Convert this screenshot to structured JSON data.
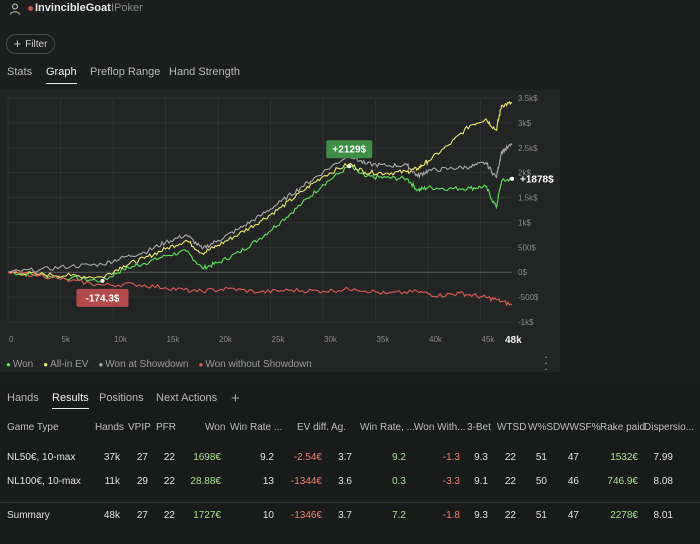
{
  "header": {
    "player_name": "InvincibleGoat",
    "site_name": "IPoker",
    "status_color": "#c0504a"
  },
  "filter": {
    "label": "Filter"
  },
  "tabs": [
    {
      "label": "Stats"
    },
    {
      "label": "Graph"
    },
    {
      "label": "Preflop Range"
    },
    {
      "label": "Hand Strength"
    }
  ],
  "chart_data": {
    "type": "line",
    "x_unit": "hands",
    "x_range": [
      0,
      48000
    ],
    "ylim": [
      -1000,
      3500
    ],
    "y_ticks": [
      3500,
      3000,
      2500,
      2000,
      1500,
      1000,
      500,
      0,
      -500,
      -1000
    ],
    "y_tick_labels": [
      "3.5k$",
      "3k$",
      "2.5k$",
      "2k$",
      "1.5k$",
      "1k$",
      "500$",
      "0$",
      "-500$",
      "-1k$"
    ],
    "x_ticks": [
      0,
      5000,
      10000,
      15000,
      20000,
      25000,
      30000,
      35000,
      40000,
      45000
    ],
    "x_tick_labels": [
      "0",
      "5k",
      "10k",
      "15k",
      "20k",
      "25k",
      "30k",
      "35k",
      "40k",
      "45k"
    ],
    "x_end_label": "48k",
    "grid": true,
    "annotations": [
      {
        "text": "+2129$",
        "x": 32500,
        "y": 2129,
        "color": "#3e8f45",
        "placement": "above"
      },
      {
        "text": "-174.3$",
        "x": 9000,
        "y": -174.3,
        "color": "#b34a4a",
        "placement": "below"
      },
      {
        "text": "+1878$",
        "x": 48000,
        "y": 1878,
        "color": "none",
        "placement": "end"
      }
    ],
    "series": [
      {
        "name": "Won",
        "color": "#5ee05a",
        "x": [
          0,
          3000,
          6000,
          9000,
          11000,
          13000,
          15000,
          17000,
          18500,
          20000,
          22000,
          24000,
          26000,
          28000,
          30000,
          32500,
          34000,
          36000,
          38000,
          39000,
          40000,
          42000,
          44000,
          45500,
          46500,
          47000,
          48000
        ],
        "y": [
          0,
          -60,
          -120,
          -174,
          60,
          180,
          330,
          420,
          80,
          190,
          400,
          680,
          1020,
          1380,
          1760,
          2129,
          1920,
          1900,
          1880,
          1650,
          1700,
          1680,
          1690,
          1720,
          1300,
          1830,
          1878
        ]
      },
      {
        "name": "All-in EV",
        "color": "#e8e86a",
        "x": [
          0,
          3000,
          6000,
          9000,
          11000,
          13000,
          15000,
          17000,
          18500,
          20000,
          22000,
          24000,
          26000,
          28000,
          30000,
          32500,
          34000,
          36000,
          38000,
          39000,
          40000,
          42000,
          44000,
          45500,
          46500,
          47000,
          48000
        ],
        "y": [
          0,
          -40,
          -70,
          -100,
          130,
          280,
          470,
          640,
          380,
          540,
          770,
          1020,
          1300,
          1620,
          1930,
          2180,
          2010,
          1990,
          2020,
          2080,
          2230,
          2560,
          2950,
          3080,
          2850,
          3350,
          3400
        ]
      },
      {
        "name": "Won at Showdown",
        "color": "#a8a8a8",
        "x": [
          0,
          3000,
          6000,
          9000,
          11000,
          13000,
          15000,
          17000,
          18500,
          20000,
          22000,
          24000,
          26000,
          28000,
          30000,
          32500,
          34000,
          36000,
          38000,
          39000,
          40000,
          42000,
          44000,
          45500,
          46500,
          47000,
          48000
        ],
        "y": [
          0,
          50,
          120,
          160,
          300,
          400,
          600,
          750,
          470,
          640,
          870,
          1130,
          1420,
          1720,
          2010,
          2360,
          2180,
          2140,
          2150,
          1930,
          2040,
          2080,
          2120,
          2200,
          1900,
          2420,
          2560
        ]
      },
      {
        "name": "Won without Showdown",
        "color": "#e05a55",
        "x": [
          0,
          3000,
          6000,
          9000,
          12000,
          15000,
          18000,
          21000,
          24000,
          27000,
          30000,
          33000,
          36000,
          39000,
          41000,
          43000,
          45000,
          46500,
          48000
        ],
        "y": [
          0,
          -60,
          -170,
          -260,
          -240,
          -310,
          -390,
          -330,
          -400,
          -360,
          -380,
          -330,
          -430,
          -390,
          -470,
          -420,
          -490,
          -550,
          -660
        ]
      }
    ]
  },
  "legend": [
    {
      "label": "Won",
      "color": "#5ee05a"
    },
    {
      "label": "All-in EV",
      "color": "#e8e86a"
    },
    {
      "label": "Won at Showdown",
      "color": "#a8a8a8"
    },
    {
      "label": "Won without Showdown",
      "color": "#e05a55"
    }
  ],
  "bottom_tabs": [
    {
      "label": "Hands"
    },
    {
      "label": "Results"
    },
    {
      "label": "Positions"
    },
    {
      "label": "Next Actions"
    }
  ],
  "table": {
    "headers": [
      "Game Type",
      "Hands",
      "VPIP",
      "PFR",
      "Won",
      "Win Rate ...",
      "EV diff.",
      "Ag.",
      "Win Rate, ...",
      "Won With...",
      "3-Bet",
      "WTSD",
      "W%SD",
      "WWSF%",
      "Rake paid",
      "Dispersio..."
    ],
    "rows": [
      [
        "NL50€, 10-max",
        "37k",
        "27",
        "22",
        "1698€",
        "9.2",
        "-2.54€",
        "3.7",
        "9.2",
        "-1.3",
        "9.3",
        "22",
        "51",
        "47",
        "1532€",
        "7.99"
      ],
      [
        "NL100€, 10-max",
        "11k",
        "29",
        "22",
        "28.88€",
        "13",
        "-1344€",
        "3.6",
        "0.3",
        "-3.3",
        "9.1",
        "22",
        "50",
        "46",
        "746.9€",
        "8.08"
      ]
    ],
    "summary": [
      "Summary",
      "48k",
      "27",
      "22",
      "1727€",
      "10",
      "-1346€",
      "3.7",
      "7.2",
      "-1.8",
      "9.3",
      "22",
      "51",
      "47",
      "2278€",
      "8.01"
    ]
  }
}
